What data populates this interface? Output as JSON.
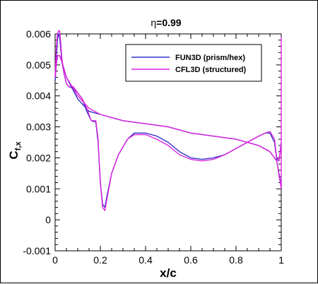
{
  "chart_data": {
    "type": "line",
    "title_prefix": "η",
    "title_suffix": "=0.99",
    "xlabel": "x/c",
    "ylabel_main": "C",
    "ylabel_sub": "f,x",
    "xlim": [
      0,
      1
    ],
    "ylim": [
      -0.001,
      0.006
    ],
    "x_ticks": [
      0,
      0.2,
      0.4,
      0.6,
      0.8,
      1
    ],
    "x_tick_labels": [
      "0",
      "0.2",
      "0.4",
      "0.6",
      "0.8",
      "1"
    ],
    "y_ticks": [
      -0.001,
      0,
      0.001,
      0.002,
      0.003,
      0.004,
      0.005,
      0.006
    ],
    "y_tick_labels": [
      "-0.001",
      "0",
      "0.001",
      "0.002",
      "0.003",
      "0.004",
      "0.005",
      "0.006"
    ],
    "grid": false,
    "legend_position": "top-right",
    "series": [
      {
        "name": "FUN3D (prism/hex)",
        "color": "#3333cc",
        "segments": [
          [
            [
              0.0,
              0.0045
            ],
            [
              0.005,
              0.0052
            ],
            [
              0.01,
              0.0058
            ],
            [
              0.015,
              0.006
            ],
            [
              0.02,
              0.0059
            ],
            [
              0.025,
              0.0055
            ],
            [
              0.03,
              0.0051
            ],
            [
              0.04,
              0.0047
            ],
            [
              0.05,
              0.0044
            ],
            [
              0.06,
              0.0043
            ],
            [
              0.08,
              0.00425
            ],
            [
              0.1,
              0.0041
            ],
            [
              0.12,
              0.0039
            ],
            [
              0.14,
              0.0035
            ],
            [
              0.16,
              0.0032
            ],
            [
              0.18,
              0.00315
            ],
            [
              0.19,
              0.0025
            ],
            [
              0.2,
              0.0012
            ],
            [
              0.21,
              0.0005
            ],
            [
              0.22,
              0.0004
            ],
            [
              0.23,
              0.0008
            ],
            [
              0.25,
              0.0015
            ],
            [
              0.28,
              0.0021
            ],
            [
              0.32,
              0.0026
            ],
            [
              0.35,
              0.0028
            ],
            [
              0.4,
              0.0028
            ],
            [
              0.45,
              0.0027
            ],
            [
              0.5,
              0.0025
            ],
            [
              0.55,
              0.0022
            ],
            [
              0.6,
              0.002
            ],
            [
              0.65,
              0.00195
            ],
            [
              0.7,
              0.002
            ],
            [
              0.75,
              0.0021
            ],
            [
              0.8,
              0.0023
            ],
            [
              0.85,
              0.0025
            ],
            [
              0.9,
              0.0027
            ],
            [
              0.93,
              0.0028
            ],
            [
              0.95,
              0.0028
            ],
            [
              0.97,
              0.0025
            ],
            [
              0.98,
              0.00195
            ],
            [
              0.99,
              0.0019
            ],
            [
              1.0,
              0.0025
            ]
          ],
          [
            [
              0.0,
              0.0045
            ],
            [
              0.005,
              0.005
            ],
            [
              0.01,
              0.0053
            ],
            [
              0.02,
              0.0053
            ],
            [
              0.03,
              0.0051
            ],
            [
              0.05,
              0.0046
            ],
            [
              0.1,
              0.0039
            ],
            [
              0.15,
              0.0035
            ],
            [
              0.2,
              0.0034
            ],
            [
              0.25,
              0.0033
            ],
            [
              0.3,
              0.0032
            ],
            [
              0.4,
              0.0031
            ],
            [
              0.5,
              0.003
            ],
            [
              0.6,
              0.0028
            ],
            [
              0.7,
              0.0027
            ],
            [
              0.8,
              0.0026
            ],
            [
              0.9,
              0.0024
            ],
            [
              0.95,
              0.0022
            ],
            [
              0.98,
              0.0019
            ],
            [
              1.0,
              0.0011
            ]
          ]
        ]
      },
      {
        "name": "CFL3D (structured)",
        "color": "#dd22dd",
        "segments": [
          [
            [
              0.0,
              0.0046
            ],
            [
              0.005,
              0.0055
            ],
            [
              0.01,
              0.006
            ],
            [
              0.015,
              0.0061
            ],
            [
              0.02,
              0.0061
            ],
            [
              0.025,
              0.0057
            ],
            [
              0.03,
              0.0052
            ],
            [
              0.04,
              0.0047
            ],
            [
              0.05,
              0.0044
            ],
            [
              0.06,
              0.0043
            ],
            [
              0.08,
              0.0043
            ],
            [
              0.1,
              0.0041
            ],
            [
              0.12,
              0.0039
            ],
            [
              0.14,
              0.0036
            ],
            [
              0.16,
              0.0032
            ],
            [
              0.18,
              0.0032
            ],
            [
              0.19,
              0.0026
            ],
            [
              0.2,
              0.0012
            ],
            [
              0.21,
              0.0004
            ],
            [
              0.22,
              0.0003
            ],
            [
              0.23,
              0.0007
            ],
            [
              0.25,
              0.0015
            ],
            [
              0.28,
              0.0021
            ],
            [
              0.32,
              0.0026
            ],
            [
              0.35,
              0.00275
            ],
            [
              0.4,
              0.00275
            ],
            [
              0.45,
              0.0026
            ],
            [
              0.5,
              0.0024
            ],
            [
              0.55,
              0.0021
            ],
            [
              0.6,
              0.00195
            ],
            [
              0.65,
              0.0019
            ],
            [
              0.7,
              0.00195
            ],
            [
              0.75,
              0.0021
            ],
            [
              0.8,
              0.0023
            ],
            [
              0.85,
              0.0025
            ],
            [
              0.9,
              0.0027
            ],
            [
              0.93,
              0.0028
            ],
            [
              0.95,
              0.00285
            ],
            [
              0.97,
              0.0026
            ],
            [
              0.98,
              0.002
            ],
            [
              0.99,
              0.0019
            ],
            [
              1.0,
              0.0025
            ]
          ],
          [
            [
              0.0,
              0.0046
            ],
            [
              0.005,
              0.005
            ],
            [
              0.01,
              0.0053
            ],
            [
              0.02,
              0.0053
            ],
            [
              0.03,
              0.0051
            ],
            [
              0.05,
              0.0046
            ],
            [
              0.1,
              0.004
            ],
            [
              0.15,
              0.0036
            ],
            [
              0.2,
              0.0034
            ],
            [
              0.25,
              0.0033
            ],
            [
              0.3,
              0.0032
            ],
            [
              0.4,
              0.0031
            ],
            [
              0.5,
              0.003
            ],
            [
              0.6,
              0.0028
            ],
            [
              0.7,
              0.0027
            ],
            [
              0.8,
              0.0026
            ],
            [
              0.9,
              0.0024
            ],
            [
              0.95,
              0.0022
            ],
            [
              0.98,
              0.0019
            ],
            [
              1.0,
              0.001
            ]
          ],
          [
            [
              1.0,
              0.001
            ],
            [
              1.0,
              0.0059
            ]
          ]
        ]
      }
    ]
  }
}
